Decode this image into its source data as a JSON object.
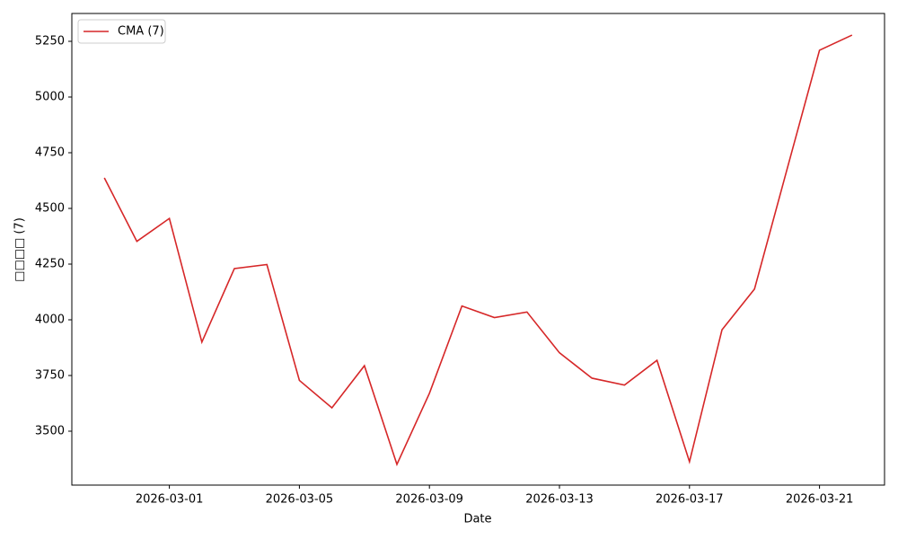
{
  "chart_data": {
    "type": "line",
    "x": [
      "2026-02-27",
      "2026-02-28",
      "2026-03-01",
      "2026-03-02",
      "2026-03-03",
      "2026-03-04",
      "2026-03-05",
      "2026-03-06",
      "2026-03-07",
      "2026-03-08",
      "2026-03-09",
      "2026-03-10",
      "2026-03-11",
      "2026-03-12",
      "2026-03-13",
      "2026-03-14",
      "2026-03-15",
      "2026-03-16",
      "2026-03-17",
      "2026-03-18",
      "2026-03-19",
      "2026-03-20",
      "2026-03-21",
      "2026-03-22"
    ],
    "series": [
      {
        "name": "CMA (7)",
        "color": "#d62728",
        "values": [
          4637,
          4352,
          4455,
          3900,
          4230,
          4248,
          3728,
          3605,
          3794,
          3351,
          3670,
          4062,
          4010,
          4035,
          3852,
          3738,
          3707,
          3818,
          3363,
          3955,
          4138,
          4675,
          5210,
          5278
        ]
      }
    ],
    "xlabel": "Date",
    "ylabel": "□□□□ (7)",
    "xlim": [
      "2026-02-26",
      "2026-03-23"
    ],
    "xticks": [
      "2026-03-01",
      "2026-03-05",
      "2026-03-09",
      "2026-03-13",
      "2026-03-17",
      "2026-03-21"
    ],
    "ylim": [
      3258,
      5375
    ],
    "yticks": [
      3500,
      3750,
      4000,
      4250,
      4500,
      4750,
      5000,
      5250
    ],
    "legend": "upper left"
  }
}
